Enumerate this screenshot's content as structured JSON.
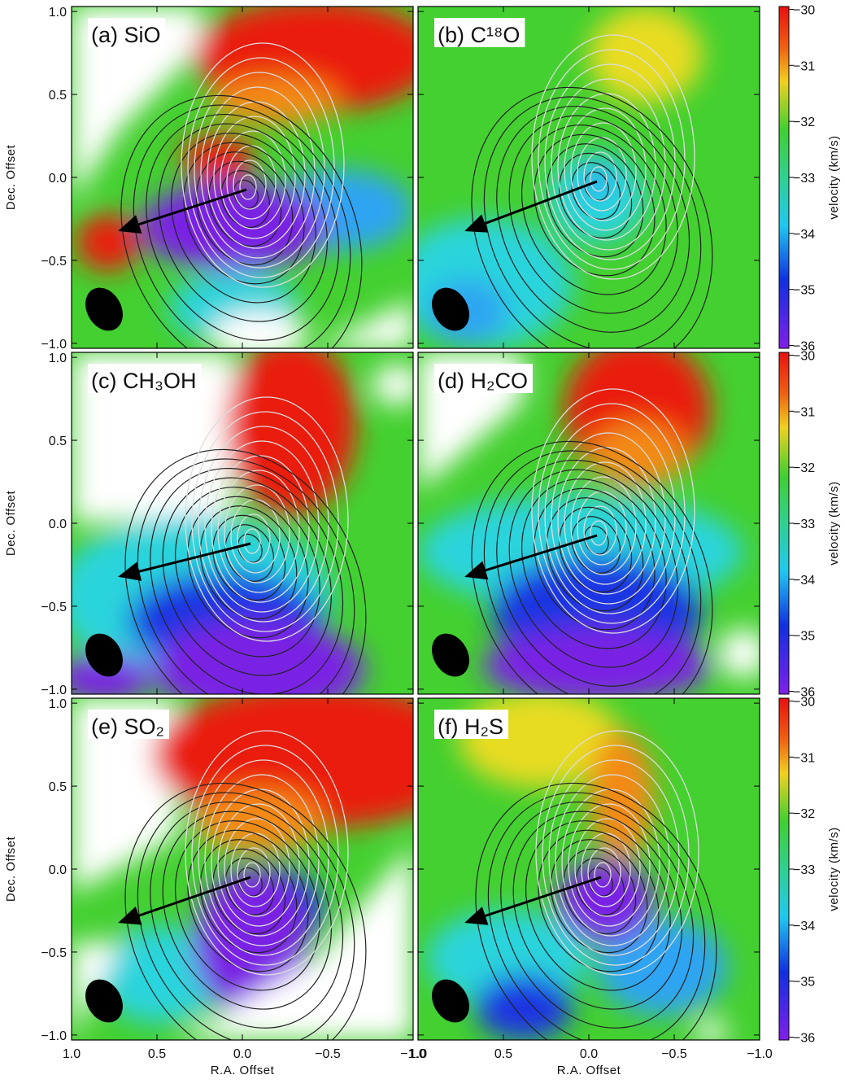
{
  "chart_data": {
    "type": "heatmap",
    "panels": [
      "(a) SiO",
      "(b) C¹⁸O",
      "(c) CH₃OH",
      "(d) H₂CO",
      "(e) SO₂",
      "(f) H₂S"
    ],
    "xlabel": "R.A. Offset",
    "ylabel": "Dec. Offset",
    "colorbar_label": "velocity (km/s)",
    "xlim": [
      1.0,
      -1.0
    ],
    "ylim": [
      -1.03,
      1.03
    ],
    "xticks": [
      {
        "value": 1.0,
        "label": "1.0"
      },
      {
        "value": 0.5,
        "label": "0.5"
      },
      {
        "value": 0,
        "label": "0.0"
      },
      {
        "value": -0.5,
        "label": "−0.5"
      },
      {
        "value": -1.0,
        "label": "−1.0"
      }
    ],
    "yticks": [
      {
        "value": 1.0,
        "label": "1.0"
      },
      {
        "value": 0.5,
        "label": "0.5"
      },
      {
        "value": 0,
        "label": "0.0"
      },
      {
        "value": -0.5,
        "label": "−0.5"
      },
      {
        "value": -1.0,
        "label": "−1.0"
      }
    ],
    "clim": [
      -36.05,
      -29.95
    ],
    "cticks": [
      {
        "value": -30,
        "label": "−30"
      },
      {
        "value": -31,
        "label": "−31"
      },
      {
        "value": -32,
        "label": "−32"
      },
      {
        "value": -33,
        "label": "−33"
      },
      {
        "value": -34,
        "label": "−34"
      },
      {
        "value": -35,
        "label": "−35"
      },
      {
        "value": -36,
        "label": "−36"
      }
    ]
  }
}
